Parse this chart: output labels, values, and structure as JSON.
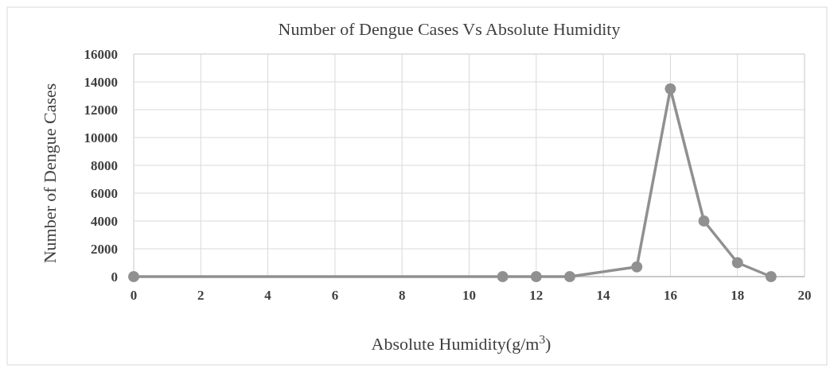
{
  "chart_data": {
    "type": "line",
    "title": "Number of Dengue Cases Vs Absolute Humidity",
    "xlabel": "Absolute Humidity(g/m$^{3}$)",
    "ylabel": "Number of Dengue Cases",
    "series": [
      {
        "color": "#909090",
        "x": [
          0,
          11,
          12,
          13,
          15,
          16,
          17,
          18,
          19
        ],
        "values": [
          0,
          0,
          0,
          0,
          700,
          13500,
          4000,
          1000,
          0
        ]
      }
    ],
    "xlim": [
      0,
      20
    ],
    "xticks": [
      0,
      2,
      4,
      6,
      8,
      10,
      12,
      14,
      16,
      18,
      20
    ],
    "ylim": [
      0,
      16000
    ],
    "yticks": [
      0,
      2000,
      4000,
      6000,
      8000,
      10000,
      12000,
      14000,
      16000
    ],
    "grid": true,
    "marker": "circle",
    "line_style": "solid"
  }
}
